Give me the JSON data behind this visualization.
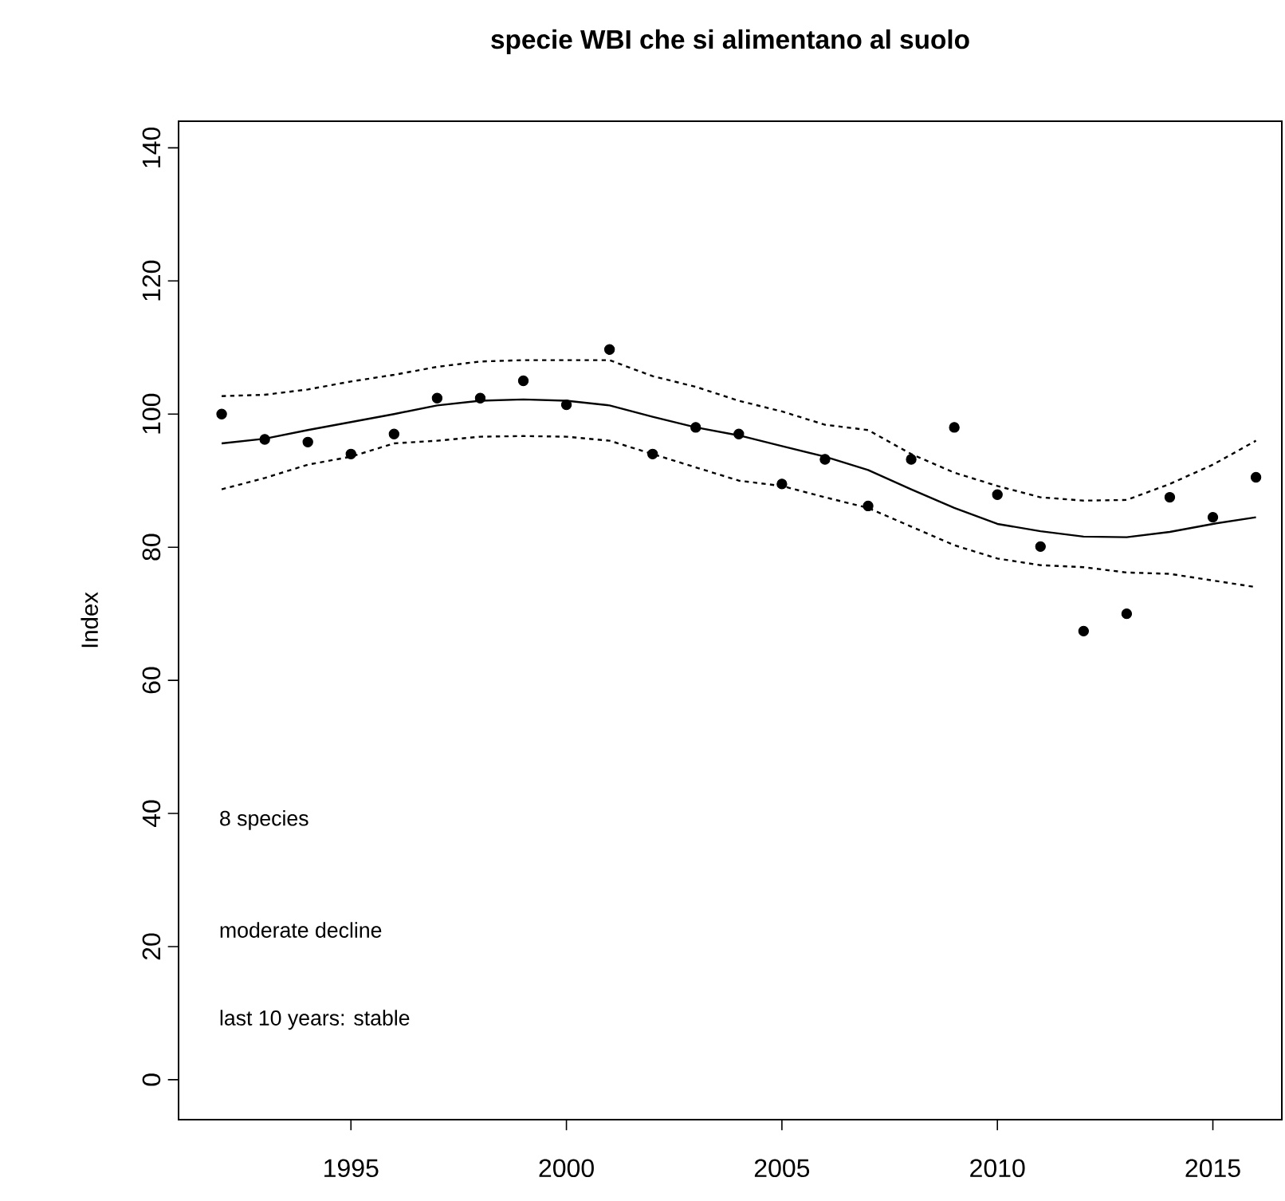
{
  "chart_data": {
    "type": "scatter",
    "title": "specie WBI che si alimentano al suolo",
    "ylabel": "Index",
    "x": [
      1992,
      1993,
      1994,
      1995,
      1996,
      1997,
      1998,
      1999,
      2000,
      2001,
      2002,
      2003,
      2004,
      2005,
      2006,
      2007,
      2008,
      2009,
      2010,
      2011,
      2012,
      2013,
      2014,
      2015,
      2016
    ],
    "series": [
      {
        "color": "#000000",
        "marker": "circle",
        "values": [
          100,
          96.2,
          95.8,
          94.0,
          97.0,
          102.4,
          102.4,
          105.0,
          101.4,
          109.7,
          94.0,
          98.0,
          97.0,
          89.5,
          93.2,
          86.2,
          93.2,
          98.0,
          87.9,
          80.1,
          67.4,
          70.0,
          87.5,
          84.5,
          90.5
        ]
      },
      {
        "type": "line",
        "color": "#000000",
        "marker": "none",
        "line_style": "solid",
        "values": [
          95.6,
          96.3,
          97.6,
          98.8,
          100.0,
          101.3,
          102.0,
          102.2,
          102.0,
          101.3,
          99.6,
          98.0,
          96.8,
          95.2,
          93.6,
          91.6,
          88.7,
          85.9,
          83.5,
          82.4,
          81.6,
          81.5,
          82.3,
          83.5,
          84.5
        ]
      },
      {
        "type": "line",
        "color": "#000000",
        "marker": "none",
        "line_style": "dotted",
        "values": [
          102.7,
          102.9,
          103.7,
          104.9,
          105.9,
          107.1,
          107.9,
          108.1,
          108.1,
          108.1,
          105.7,
          104.1,
          102.0,
          100.4,
          98.4,
          97.6,
          94.0,
          91.2,
          89.2,
          87.5,
          87.0,
          87.1,
          89.5,
          92.4,
          96.0
        ]
      },
      {
        "type": "line",
        "color": "#000000",
        "marker": "none",
        "line_style": "dotted",
        "values": [
          88.7,
          90.4,
          92.4,
          93.6,
          95.6,
          96.0,
          96.6,
          96.7,
          96.6,
          96.0,
          94.0,
          92.0,
          90.0,
          89.2,
          87.5,
          85.9,
          83.1,
          80.3,
          78.3,
          77.3,
          77.0,
          76.2,
          76.0,
          75.0,
          74.0
        ]
      }
    ],
    "xlim": [
      1991,
      2016.6
    ],
    "ylim": [
      -6,
      144
    ],
    "xticks": [
      1995,
      2000,
      2005,
      2010,
      2015
    ],
    "yticks": [
      0,
      20,
      40,
      60,
      80,
      100,
      120,
      140
    ],
    "annotations": [
      "8 species",
      "moderate decline",
      "last 10 years: stable"
    ]
  }
}
